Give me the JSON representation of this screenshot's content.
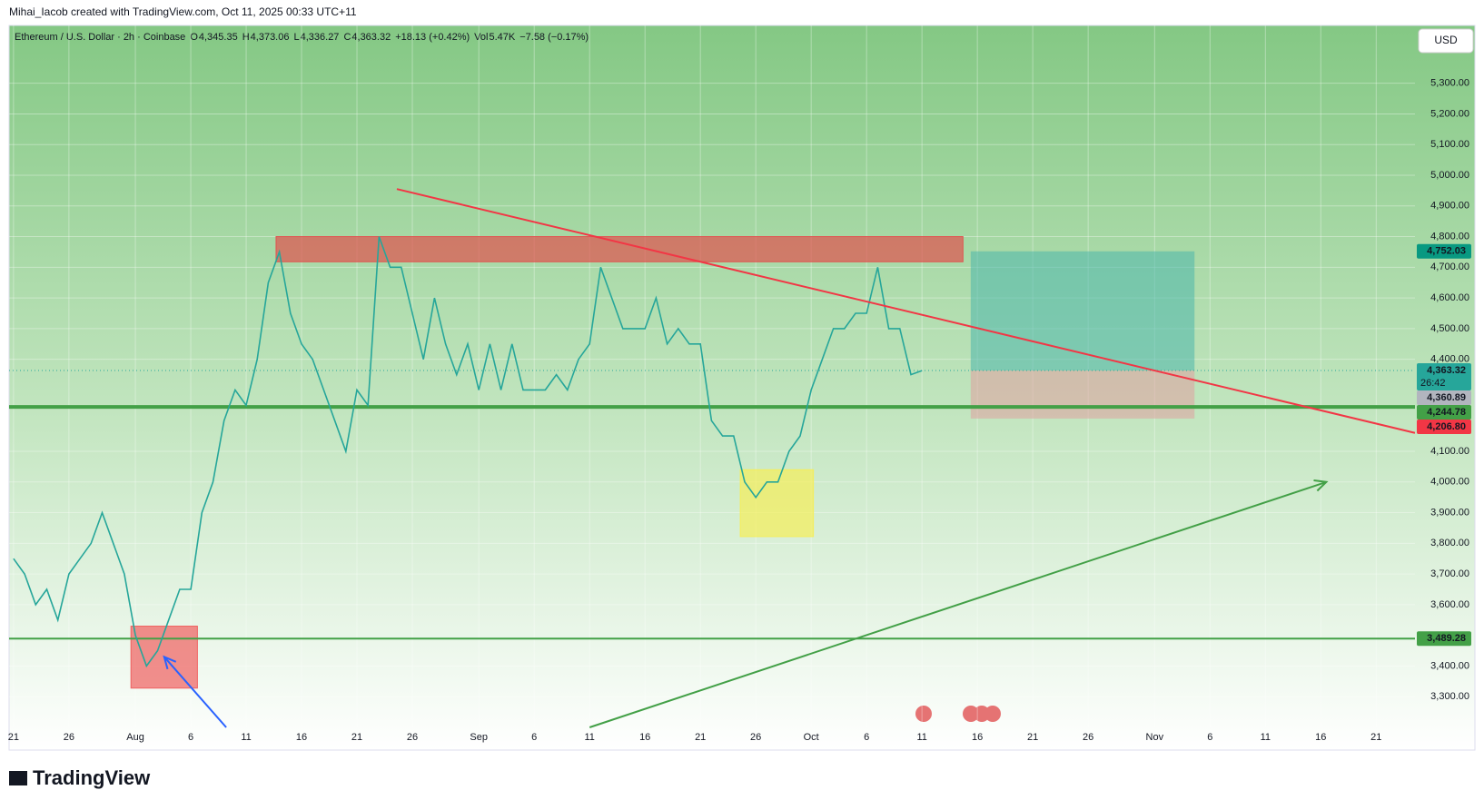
{
  "header": {
    "credit": "Mihai_Iacob created with TradingView.com, Oct 11, 2025 00:33 UTC+11",
    "ohlc": [
      {
        "k": "O",
        "v": "4,345.35"
      },
      {
        "k": "H",
        "v": "4,373.06"
      },
      {
        "k": "L",
        "v": "4,336.27"
      },
      {
        "k": "C",
        "v": "4,363.32"
      }
    ],
    "change": "+18.13 (+0.42%)",
    "vol_key": "Vol",
    "vol": "5.47K",
    "vol_change": "−7.58 (−0.17%)",
    "currency": "USD",
    "brand": "TradingView"
  },
  "chart_data": {
    "type": "line",
    "x": [
      0,
      1,
      2,
      3,
      4,
      5,
      6,
      7,
      8,
      9,
      10,
      11,
      12,
      13,
      14,
      15,
      16,
      17,
      18,
      19,
      20,
      21,
      22,
      23,
      24,
      25,
      26,
      27,
      28,
      29,
      30,
      31,
      32,
      33,
      34,
      35,
      36,
      37,
      38,
      39,
      40,
      41,
      42,
      43,
      44,
      45,
      46,
      47,
      48,
      49,
      50,
      51,
      52,
      53,
      54,
      55,
      56,
      57,
      58,
      59,
      60,
      61,
      62,
      63,
      64,
      65,
      66,
      67,
      68,
      69,
      70,
      71,
      72,
      73,
      74,
      75,
      76,
      77,
      78,
      79,
      80,
      81,
      82
    ],
    "series": [
      {
        "name": "Ethereum / U.S. Dollar · 2h · Coinbase",
        "color": "#26a69a",
        "values": [
          3750,
          3700,
          3600,
          3650,
          3550,
          3700,
          3750,
          3800,
          3900,
          3800,
          3700,
          3500,
          3400,
          3450,
          3550,
          3650,
          3650,
          3900,
          4000,
          4200,
          4300,
          4250,
          4400,
          4650,
          4750,
          4550,
          4450,
          4400,
          4300,
          4200,
          4100,
          4300,
          4250,
          4800,
          4700,
          4700,
          4550,
          4400,
          4600,
          4450,
          4350,
          4450,
          4300,
          4450,
          4300,
          4450,
          4300,
          4300,
          4300,
          4350,
          4300,
          4400,
          4450,
          4700,
          4600,
          4500,
          4500,
          4500,
          4600,
          4450,
          4500,
          4450,
          4450,
          4200,
          4150,
          4150,
          4000,
          3950,
          4000,
          4000,
          4100,
          4150,
          4300,
          4400,
          4500,
          4500,
          4550,
          4550,
          4700,
          4500,
          4500,
          4350,
          4363.32
        ]
      }
    ],
    "xlim": [
      -0.4,
      126.5
    ],
    "xticks": [
      {
        "value": 0,
        "label": "21"
      },
      {
        "value": 5,
        "label": "26"
      },
      {
        "value": 11,
        "label": "Aug"
      },
      {
        "value": 16,
        "label": "6"
      },
      {
        "value": 21,
        "label": "11"
      },
      {
        "value": 26,
        "label": "16"
      },
      {
        "value": 31,
        "label": "21"
      },
      {
        "value": 36,
        "label": "26"
      },
      {
        "value": 42,
        "label": "Sep"
      },
      {
        "value": 47,
        "label": "6"
      },
      {
        "value": 52,
        "label": "11"
      },
      {
        "value": 57,
        "label": "16"
      },
      {
        "value": 62,
        "label": "21"
      },
      {
        "value": 67,
        "label": "26"
      },
      {
        "value": 72,
        "label": "Oct"
      },
      {
        "value": 77,
        "label": "6"
      },
      {
        "value": 82,
        "label": "11"
      },
      {
        "value": 87,
        "label": "16"
      },
      {
        "value": 92,
        "label": "21"
      },
      {
        "value": 97,
        "label": "26"
      },
      {
        "value": 103,
        "label": "Nov"
      },
      {
        "value": 108,
        "label": "6"
      },
      {
        "value": 113,
        "label": "11"
      },
      {
        "value": 118,
        "label": "16"
      },
      {
        "value": 123,
        "label": "21"
      }
    ],
    "ylim": [
      3200,
      5450
    ],
    "yticks": [
      {
        "value": 3300,
        "label": "3,300.00"
      },
      {
        "value": 3400,
        "label": "3,400.00"
      },
      {
        "value": 3600,
        "label": "3,600.00"
      },
      {
        "value": 3700,
        "label": "3,700.00"
      },
      {
        "value": 3800,
        "label": "3,800.00"
      },
      {
        "value": 3900,
        "label": "3,900.00"
      },
      {
        "value": 4000,
        "label": "4,000.00"
      },
      {
        "value": 4100,
        "label": "4,100.00"
      },
      {
        "value": 4400,
        "label": "4,400.00"
      },
      {
        "value": 4500,
        "label": "4,500.00"
      },
      {
        "value": 4600,
        "label": "4,600.00"
      },
      {
        "value": 4700,
        "label": "4,700.00"
      },
      {
        "value": 4800,
        "label": "4,800.00"
      },
      {
        "value": 4900,
        "label": "4,900.00"
      },
      {
        "value": 5000,
        "label": "5,000.00"
      },
      {
        "value": 5100,
        "label": "5,100.00"
      },
      {
        "value": 5200,
        "label": "5,200.00"
      },
      {
        "value": 5300,
        "label": "5,300.00"
      }
    ],
    "grid": true,
    "hlines": [
      {
        "value": 4244.78,
        "color": "#43a047",
        "width": 4
      },
      {
        "value": 3489.28,
        "color": "#43a047",
        "width": 2
      }
    ],
    "zones": [
      {
        "x": [
          23.7,
          85.7
        ],
        "y": [
          4718,
          4800
        ],
        "color": "#e0524f"
      },
      {
        "x": [
          10.6,
          16.6
        ],
        "y": [
          3328,
          3530
        ],
        "color": "#f06060"
      },
      {
        "x": [
          65.6,
          72.2
        ],
        "y": [
          3822,
          4040
        ],
        "color": "#f5ee5a"
      }
    ],
    "position": {
      "x": [
        86.4,
        106.6
      ],
      "target": 4752.03,
      "entry": 4363.32,
      "stop": 4206.8
    },
    "lines": [
      {
        "x": [
          34.6,
          126.5
        ],
        "y": [
          4955,
          4160
        ],
        "color": "#f23645"
      },
      {
        "x": [
          52,
          118.5
        ],
        "y": [
          3200,
          4000
        ],
        "color": "#43a047"
      },
      {
        "x": [
          19.2,
          13.6
        ],
        "y": [
          3200,
          3430
        ],
        "color": "#2962ff"
      }
    ],
    "price_tags": [
      {
        "value": 4752.03,
        "label": "4,752.03",
        "color": "#089981"
      },
      {
        "value": 4363.32,
        "label": "4,363.32",
        "sub": "26:42",
        "color": "#26a69a"
      },
      {
        "value": 4360.89,
        "label": "4,360.89",
        "color": "#b2b5be"
      },
      {
        "value": 4244.78,
        "label": "4,244.78",
        "color": "#43a047"
      },
      {
        "value": 4206.8,
        "label": "4,206.80",
        "color": "#f23645"
      },
      {
        "value": 3489.28,
        "label": "3,489.28",
        "color": "#43a047"
      }
    ]
  }
}
